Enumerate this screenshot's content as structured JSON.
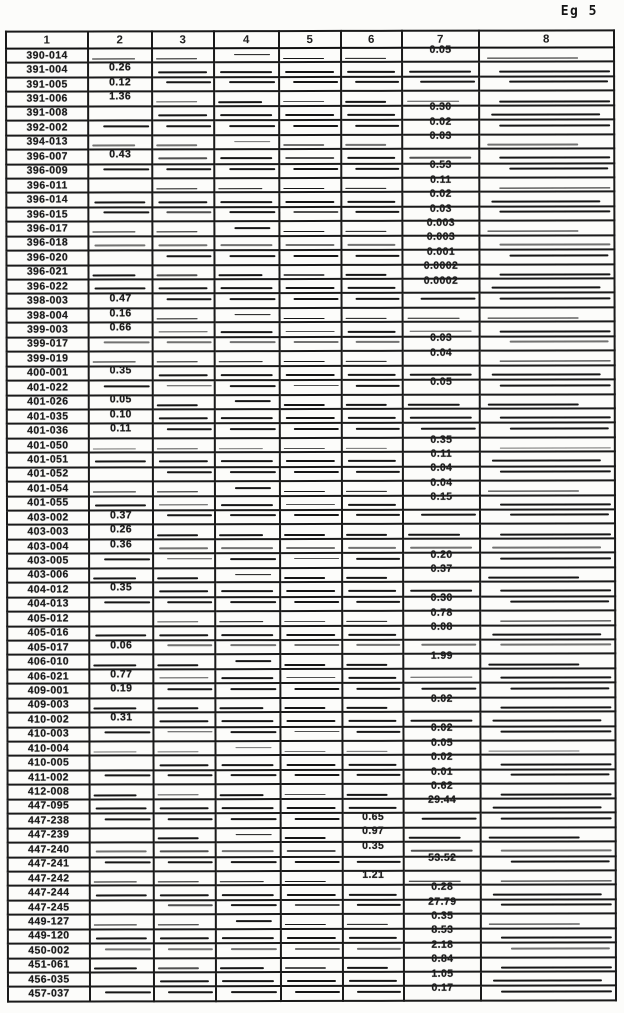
{
  "page": {
    "corner_label": "Eg 5"
  },
  "table": {
    "headers": [
      "1",
      "2",
      "3",
      "4",
      "5",
      "6",
      "7",
      "8"
    ],
    "rows": [
      [
        "390-014",
        "",
        "",
        "",
        "",
        "",
        "0.05",
        ""
      ],
      [
        "391-004",
        "0.26",
        "",
        "",
        "",
        "",
        "",
        ""
      ],
      [
        "391-005",
        "0.12",
        "",
        "",
        "",
        "",
        "",
        ""
      ],
      [
        "391-006",
        "1.36",
        "",
        "",
        "",
        "",
        "",
        ""
      ],
      [
        "391-008",
        "",
        "",
        "",
        "",
        "",
        "0.30",
        ""
      ],
      [
        "392-002",
        "",
        "",
        "",
        "",
        "",
        "0.02",
        ""
      ],
      [
        "394-013",
        "",
        "",
        "",
        "",
        "",
        "0.03",
        ""
      ],
      [
        "396-007",
        "0.43",
        "",
        "",
        "",
        "",
        "",
        ""
      ],
      [
        "396-009",
        "",
        "",
        "",
        "",
        "",
        "0.53",
        ""
      ],
      [
        "396-011",
        "",
        "",
        "",
        "",
        "",
        "0.11",
        ""
      ],
      [
        "396-014",
        "",
        "",
        "",
        "",
        "",
        "0.02",
        ""
      ],
      [
        "396-015",
        "",
        "",
        "",
        "",
        "",
        "0.03",
        ""
      ],
      [
        "396-017",
        "",
        "",
        "",
        "",
        "",
        "0.003",
        ""
      ],
      [
        "396-018",
        "",
        "",
        "",
        "",
        "",
        "0.003",
        ""
      ],
      [
        "396-020",
        "",
        "",
        "",
        "",
        "",
        "0.001",
        ""
      ],
      [
        "396-021",
        "",
        "",
        "",
        "",
        "",
        "0.0002",
        ""
      ],
      [
        "396-022",
        "",
        "",
        "",
        "",
        "",
        "0.0002",
        ""
      ],
      [
        "398-003",
        "0.47",
        "",
        "",
        "",
        "",
        "",
        ""
      ],
      [
        "398-004",
        "0.16",
        "",
        "",
        "",
        "",
        "",
        ""
      ],
      [
        "399-003",
        "0.66",
        "",
        "",
        "",
        "",
        "",
        ""
      ],
      [
        "399-017",
        "",
        "",
        "",
        "",
        "",
        "0.03",
        ""
      ],
      [
        "399-019",
        "",
        "",
        "",
        "",
        "",
        "0.04",
        ""
      ],
      [
        "400-001",
        "0.35",
        "",
        "",
        "",
        "",
        "",
        ""
      ],
      [
        "401-022",
        "",
        "",
        "",
        "",
        "",
        "0.05",
        ""
      ],
      [
        "401-026",
        "0.05",
        "",
        "",
        "",
        "",
        "",
        ""
      ],
      [
        "401-035",
        "0.10",
        "",
        "",
        "",
        "",
        "",
        ""
      ],
      [
        "401-036",
        "0.11",
        "",
        "",
        "",
        "",
        "",
        ""
      ],
      [
        "401-050",
        "",
        "",
        "",
        "",
        "",
        "0.35",
        ""
      ],
      [
        "401-051",
        "",
        "",
        "",
        "",
        "",
        "0.11",
        ""
      ],
      [
        "401-052",
        "",
        "",
        "",
        "",
        "",
        "0.04",
        ""
      ],
      [
        "401-054",
        "",
        "",
        "",
        "",
        "",
        "0.04",
        ""
      ],
      [
        "401-055",
        "",
        "",
        "",
        "",
        "",
        "0.15",
        ""
      ],
      [
        "403-002",
        "0.37",
        "",
        "",
        "",
        "",
        "",
        ""
      ],
      [
        "403-003",
        "0.26",
        "",
        "",
        "",
        "",
        "",
        ""
      ],
      [
        "403-004",
        "0.36",
        "",
        "",
        "",
        "",
        "",
        ""
      ],
      [
        "403-005",
        "",
        "",
        "",
        "",
        "",
        "0.20",
        ""
      ],
      [
        "403-006",
        "",
        "",
        "",
        "",
        "",
        "0.37",
        ""
      ],
      [
        "404-012",
        "0.35",
        "",
        "",
        "",
        "",
        "",
        ""
      ],
      [
        "404-013",
        "",
        "",
        "",
        "",
        "",
        "0.30",
        ""
      ],
      [
        "405-012",
        "",
        "",
        "",
        "",
        "",
        "0.78",
        ""
      ],
      [
        "405-016",
        "",
        "",
        "",
        "",
        "",
        "0.08",
        ""
      ],
      [
        "405-017",
        "0.06",
        "",
        "",
        "",
        "",
        "",
        ""
      ],
      [
        "406-010",
        "",
        "",
        "",
        "",
        "",
        "1.99",
        ""
      ],
      [
        "406-021",
        "0.77",
        "",
        "",
        "",
        "",
        "",
        ""
      ],
      [
        "409-001",
        "0.19",
        "",
        "",
        "",
        "",
        "",
        ""
      ],
      [
        "409-003",
        "",
        "",
        "",
        "",
        "",
        "0.02",
        ""
      ],
      [
        "410-002",
        "0.31",
        "",
        "",
        "",
        "",
        "",
        ""
      ],
      [
        "410-003",
        "",
        "",
        "",
        "",
        "",
        "0.02",
        ""
      ],
      [
        "410-004",
        "",
        "",
        "",
        "",
        "",
        "0.05",
        ""
      ],
      [
        "410-005",
        "",
        "",
        "",
        "",
        "",
        "0.02",
        ""
      ],
      [
        "411-002",
        "",
        "",
        "",
        "",
        "",
        "0.01",
        ""
      ],
      [
        "412-008",
        "",
        "",
        "",
        "",
        "",
        "0.62",
        ""
      ],
      [
        "447-095",
        "",
        "",
        "",
        "",
        "",
        "29.44",
        ""
      ],
      [
        "447-238",
        "",
        "",
        "",
        "",
        "0.65",
        "",
        ""
      ],
      [
        "447-239",
        "",
        "",
        "",
        "",
        "0.97",
        "",
        ""
      ],
      [
        "447-240",
        "",
        "",
        "",
        "",
        "0.35",
        "",
        ""
      ],
      [
        "447-241",
        "",
        "",
        "",
        "",
        "",
        "53.52",
        ""
      ],
      [
        "447-242",
        "",
        "",
        "",
        "",
        "1.21",
        "",
        ""
      ],
      [
        "447-244",
        "",
        "",
        "",
        "",
        "",
        "0.28",
        ""
      ],
      [
        "447-245",
        "",
        "",
        "",
        "",
        "",
        "27.79",
        ""
      ],
      [
        "449-127",
        "",
        "",
        "",
        "",
        "",
        "0.35",
        ""
      ],
      [
        "449-120",
        "",
        "",
        "",
        "",
        "",
        "8.53",
        ""
      ],
      [
        "450-002",
        "",
        "",
        "",
        "",
        "",
        "2.18",
        ""
      ],
      [
        "451-061",
        "",
        "",
        "",
        "",
        "",
        "0.84",
        ""
      ],
      [
        "456-035",
        "",
        "",
        "",
        "",
        "",
        "1.05",
        ""
      ],
      [
        "457-037",
        "",
        "",
        "",
        "",
        "",
        "0.17",
        ""
      ]
    ]
  }
}
